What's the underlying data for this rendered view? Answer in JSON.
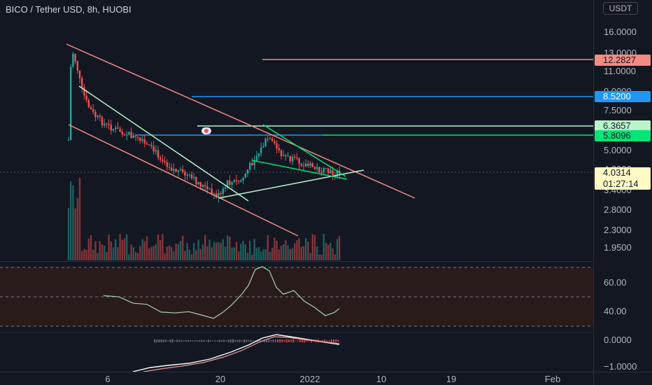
{
  "legend": "BICO / Tether USD, 8h, HUOBI",
  "currency_button": "USDT",
  "price_axis": {
    "top_clip": "2",
    "ticks": [
      "16.0000",
      "13.0000",
      "11.0000",
      "9.0000",
      "7.5000",
      "5.0000",
      "4.2000",
      "3.4000",
      "2.8000",
      "2.3000",
      "1.9500"
    ],
    "tags": {
      "level_1": "12.2827",
      "level_2": "8.5200",
      "level_3": "6.3657",
      "level_4": "5.8096",
      "last_price": "4.0314",
      "countdown": "01:27:14"
    }
  },
  "rsi_axis": {
    "ticks": [
      "60.00",
      "40.00"
    ]
  },
  "macd_axis": {
    "ticks": [
      "0.0000",
      "−1.0000"
    ]
  },
  "time_axis": {
    "labels": [
      "6",
      "20",
      "2022",
      "10",
      "19",
      "Feb"
    ]
  },
  "colors": {
    "up": "#26a69a",
    "down": "#ef5350",
    "channel": "#f28b82",
    "blue_line": "#2196f3",
    "green_line": "#00e676",
    "light_green": "#b9f6ca",
    "rsi_line": "#a5d6a7",
    "rsi_band": "#2a1b1b",
    "last_price_bg": "#fff9c4"
  },
  "icons": {
    "alert_marker": "flag-badge-icon"
  }
}
